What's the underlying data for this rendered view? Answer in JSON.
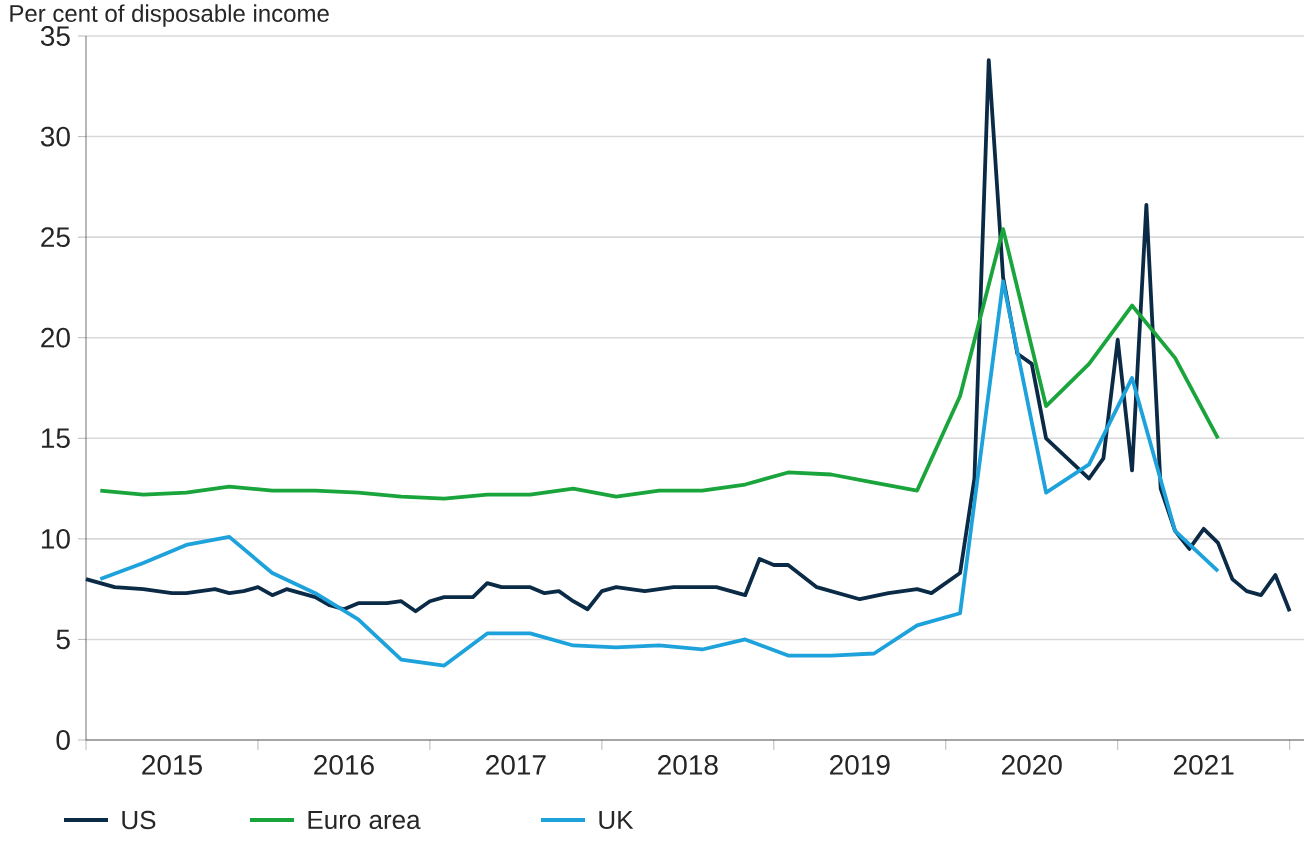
{
  "chart_data": {
    "type": "line",
    "ylabel": "Per cent of disposable income",
    "xlim": [
      "2015-01",
      "2022-02"
    ],
    "xticks": [
      {
        "value": "2015-01",
        "label": null
      },
      {
        "value": "2015-07",
        "label": "2015"
      },
      {
        "value": "2016-01",
        "label": null
      },
      {
        "value": "2016-07",
        "label": "2016"
      },
      {
        "value": "2017-01",
        "label": null
      },
      {
        "value": "2017-07",
        "label": "2017"
      },
      {
        "value": "2018-01",
        "label": null
      },
      {
        "value": "2018-07",
        "label": "2018"
      },
      {
        "value": "2019-01",
        "label": null
      },
      {
        "value": "2019-07",
        "label": "2019"
      },
      {
        "value": "2020-01",
        "label": null
      },
      {
        "value": "2020-07",
        "label": "2020"
      },
      {
        "value": "2021-01",
        "label": null
      },
      {
        "value": "2021-07",
        "label": "2021"
      },
      {
        "value": "2022-01",
        "label": null
      }
    ],
    "ylim": [
      0,
      35
    ],
    "yticks": [
      0,
      5,
      10,
      15,
      20,
      25,
      30,
      35
    ],
    "grid": "y",
    "legend": "bottom",
    "line_style": "solid",
    "series": [
      {
        "name": "US",
        "color": "#0b2a45",
        "x": [
          "2015-01",
          "2015-03",
          "2015-05",
          "2015-07",
          "2015-08",
          "2015-10",
          "2015-11",
          "2015-12",
          "2016-01",
          "2016-02",
          "2016-03",
          "2016-05",
          "2016-06",
          "2016-07",
          "2016-08",
          "2016-10",
          "2016-11",
          "2016-12",
          "2017-01",
          "2017-02",
          "2017-04",
          "2017-05",
          "2017-06",
          "2017-08",
          "2017-09",
          "2017-10",
          "2017-11",
          "2017-12",
          "2018-01",
          "2018-02",
          "2018-03",
          "2018-04",
          "2018-06",
          "2018-09",
          "2018-11",
          "2018-12",
          "2019-01",
          "2019-02",
          "2019-04",
          "2019-07",
          "2019-09",
          "2019-11",
          "2019-12",
          "2020-02",
          "2020-03",
          "2020-04",
          "2020-05",
          "2020-06",
          "2020-07",
          "2020-08",
          "2020-11",
          "2020-12",
          "2021-01",
          "2021-02",
          "2021-03",
          "2021-04",
          "2021-05",
          "2021-06",
          "2021-07",
          "2021-08",
          "2021-09",
          "2021-10",
          "2021-11",
          "2021-12",
          "2022-01"
        ],
        "values": [
          8.0,
          7.6,
          7.5,
          7.3,
          7.3,
          7.5,
          7.3,
          7.4,
          7.6,
          7.2,
          7.5,
          7.1,
          6.7,
          6.5,
          6.8,
          6.8,
          6.9,
          6.4,
          6.9,
          7.1,
          7.1,
          7.8,
          7.6,
          7.6,
          7.3,
          7.4,
          6.9,
          6.5,
          7.4,
          7.6,
          7.5,
          7.4,
          7.6,
          7.6,
          7.2,
          9.0,
          8.7,
          8.7,
          7.6,
          7.0,
          7.3,
          7.5,
          7.3,
          8.3,
          13.0,
          33.8,
          23.0,
          19.2,
          18.7,
          15.0,
          13.0,
          14.0,
          19.9,
          13.4,
          26.6,
          12.5,
          10.4,
          9.5,
          10.5,
          9.8,
          8.0,
          7.4,
          7.2,
          8.2,
          6.4
        ]
      },
      {
        "name": "Euro area",
        "color": "#1aa53c",
        "x": [
          "2015-02",
          "2015-05",
          "2015-08",
          "2015-11",
          "2016-02",
          "2016-05",
          "2016-08",
          "2016-11",
          "2017-02",
          "2017-05",
          "2017-08",
          "2017-11",
          "2018-02",
          "2018-05",
          "2018-08",
          "2018-11",
          "2019-02",
          "2019-05",
          "2019-08",
          "2019-11",
          "2020-02",
          "2020-05",
          "2020-08",
          "2020-11",
          "2021-02",
          "2021-05",
          "2021-08"
        ],
        "values": [
          12.4,
          12.2,
          12.3,
          12.6,
          12.4,
          12.4,
          12.3,
          12.1,
          12.0,
          12.2,
          12.2,
          12.5,
          12.1,
          12.4,
          12.4,
          12.7,
          13.3,
          13.2,
          12.8,
          12.4,
          17.1,
          25.4,
          16.6,
          18.7,
          21.6,
          19.0,
          15.0
        ]
      },
      {
        "name": "UK",
        "color": "#1ea2dc",
        "x": [
          "2015-02",
          "2015-05",
          "2015-08",
          "2015-11",
          "2016-02",
          "2016-05",
          "2016-08",
          "2016-11",
          "2017-02",
          "2017-05",
          "2017-08",
          "2017-11",
          "2018-02",
          "2018-05",
          "2018-08",
          "2018-11",
          "2019-02",
          "2019-05",
          "2019-08",
          "2019-11",
          "2020-02",
          "2020-05",
          "2020-08",
          "2020-11",
          "2021-02",
          "2021-05",
          "2021-08"
        ],
        "values": [
          8.0,
          8.8,
          9.7,
          10.1,
          8.3,
          7.3,
          6.0,
          4.0,
          3.7,
          5.3,
          5.3,
          4.7,
          4.6,
          4.7,
          4.5,
          5.0,
          4.2,
          4.2,
          4.3,
          5.7,
          6.3,
          22.8,
          12.3,
          13.7,
          18.0,
          10.4,
          8.4
        ]
      }
    ]
  }
}
